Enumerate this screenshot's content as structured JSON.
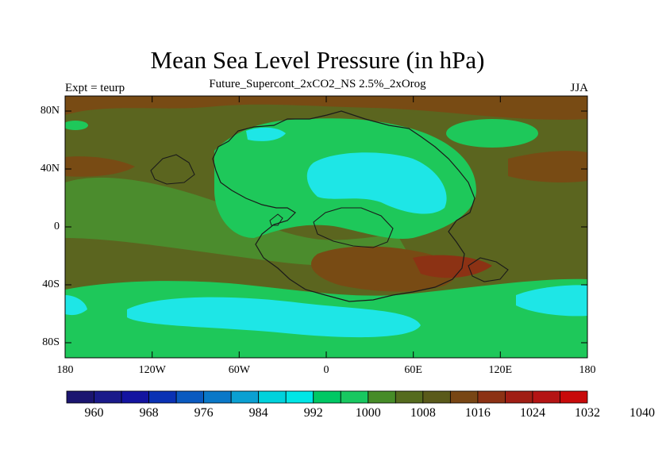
{
  "title": "Mean Sea Level Pressure (in hPa)",
  "subtitle": "Future_Supercont_2xCO2_NS 2.5%_2xOrog",
  "left_label": "Expt = teurp",
  "right_label": "JJA",
  "y_ticks": [
    "80N",
    "40N",
    "0",
    "40S",
    "80S"
  ],
  "x_ticks": [
    "180",
    "120W",
    "60W",
    "0",
    "60E",
    "120E",
    "180"
  ],
  "colorbar": {
    "labels": [
      "960",
      "968",
      "976",
      "984",
      "992",
      "1000",
      "1008",
      "1016",
      "1024",
      "1032",
      "1040"
    ],
    "colors": [
      "#1b1570",
      "#1a1a8a",
      "#1414a0",
      "#0a32b4",
      "#0a5ac0",
      "#0a78c8",
      "#0aa0d2",
      "#00d2dc",
      "#00e6e6",
      "#00c864",
      "#18c860",
      "#468c28",
      "#556b1e",
      "#5a5a1a",
      "#784614",
      "#8c3214",
      "#a01e14",
      "#b41414",
      "#c80a0a"
    ]
  },
  "colors": {
    "cyan": "#1ee6e6",
    "light-green": "#1ec85a",
    "green": "#4b8c2d",
    "olive": "#5b651f",
    "brown": "#784b14",
    "dark-red": "#8c3214"
  },
  "chart_data": {
    "type": "heatmap",
    "title": "Mean Sea Level Pressure (in hPa)",
    "subtitle": "Future_Supercont_2xCO2_NS 2.5%_2xOrog",
    "variable": "Mean Sea Level Pressure",
    "units": "hPa",
    "season": "JJA",
    "experiment": "teurp",
    "x_range": [
      -180,
      180
    ],
    "y_range": [
      -90,
      90
    ],
    "contour_levels": [
      960,
      964,
      968,
      972,
      976,
      980,
      984,
      988,
      992,
      996,
      1000,
      1004,
      1008,
      1012,
      1016,
      1020,
      1024,
      1028,
      1032,
      1036,
      1040
    ]
  }
}
